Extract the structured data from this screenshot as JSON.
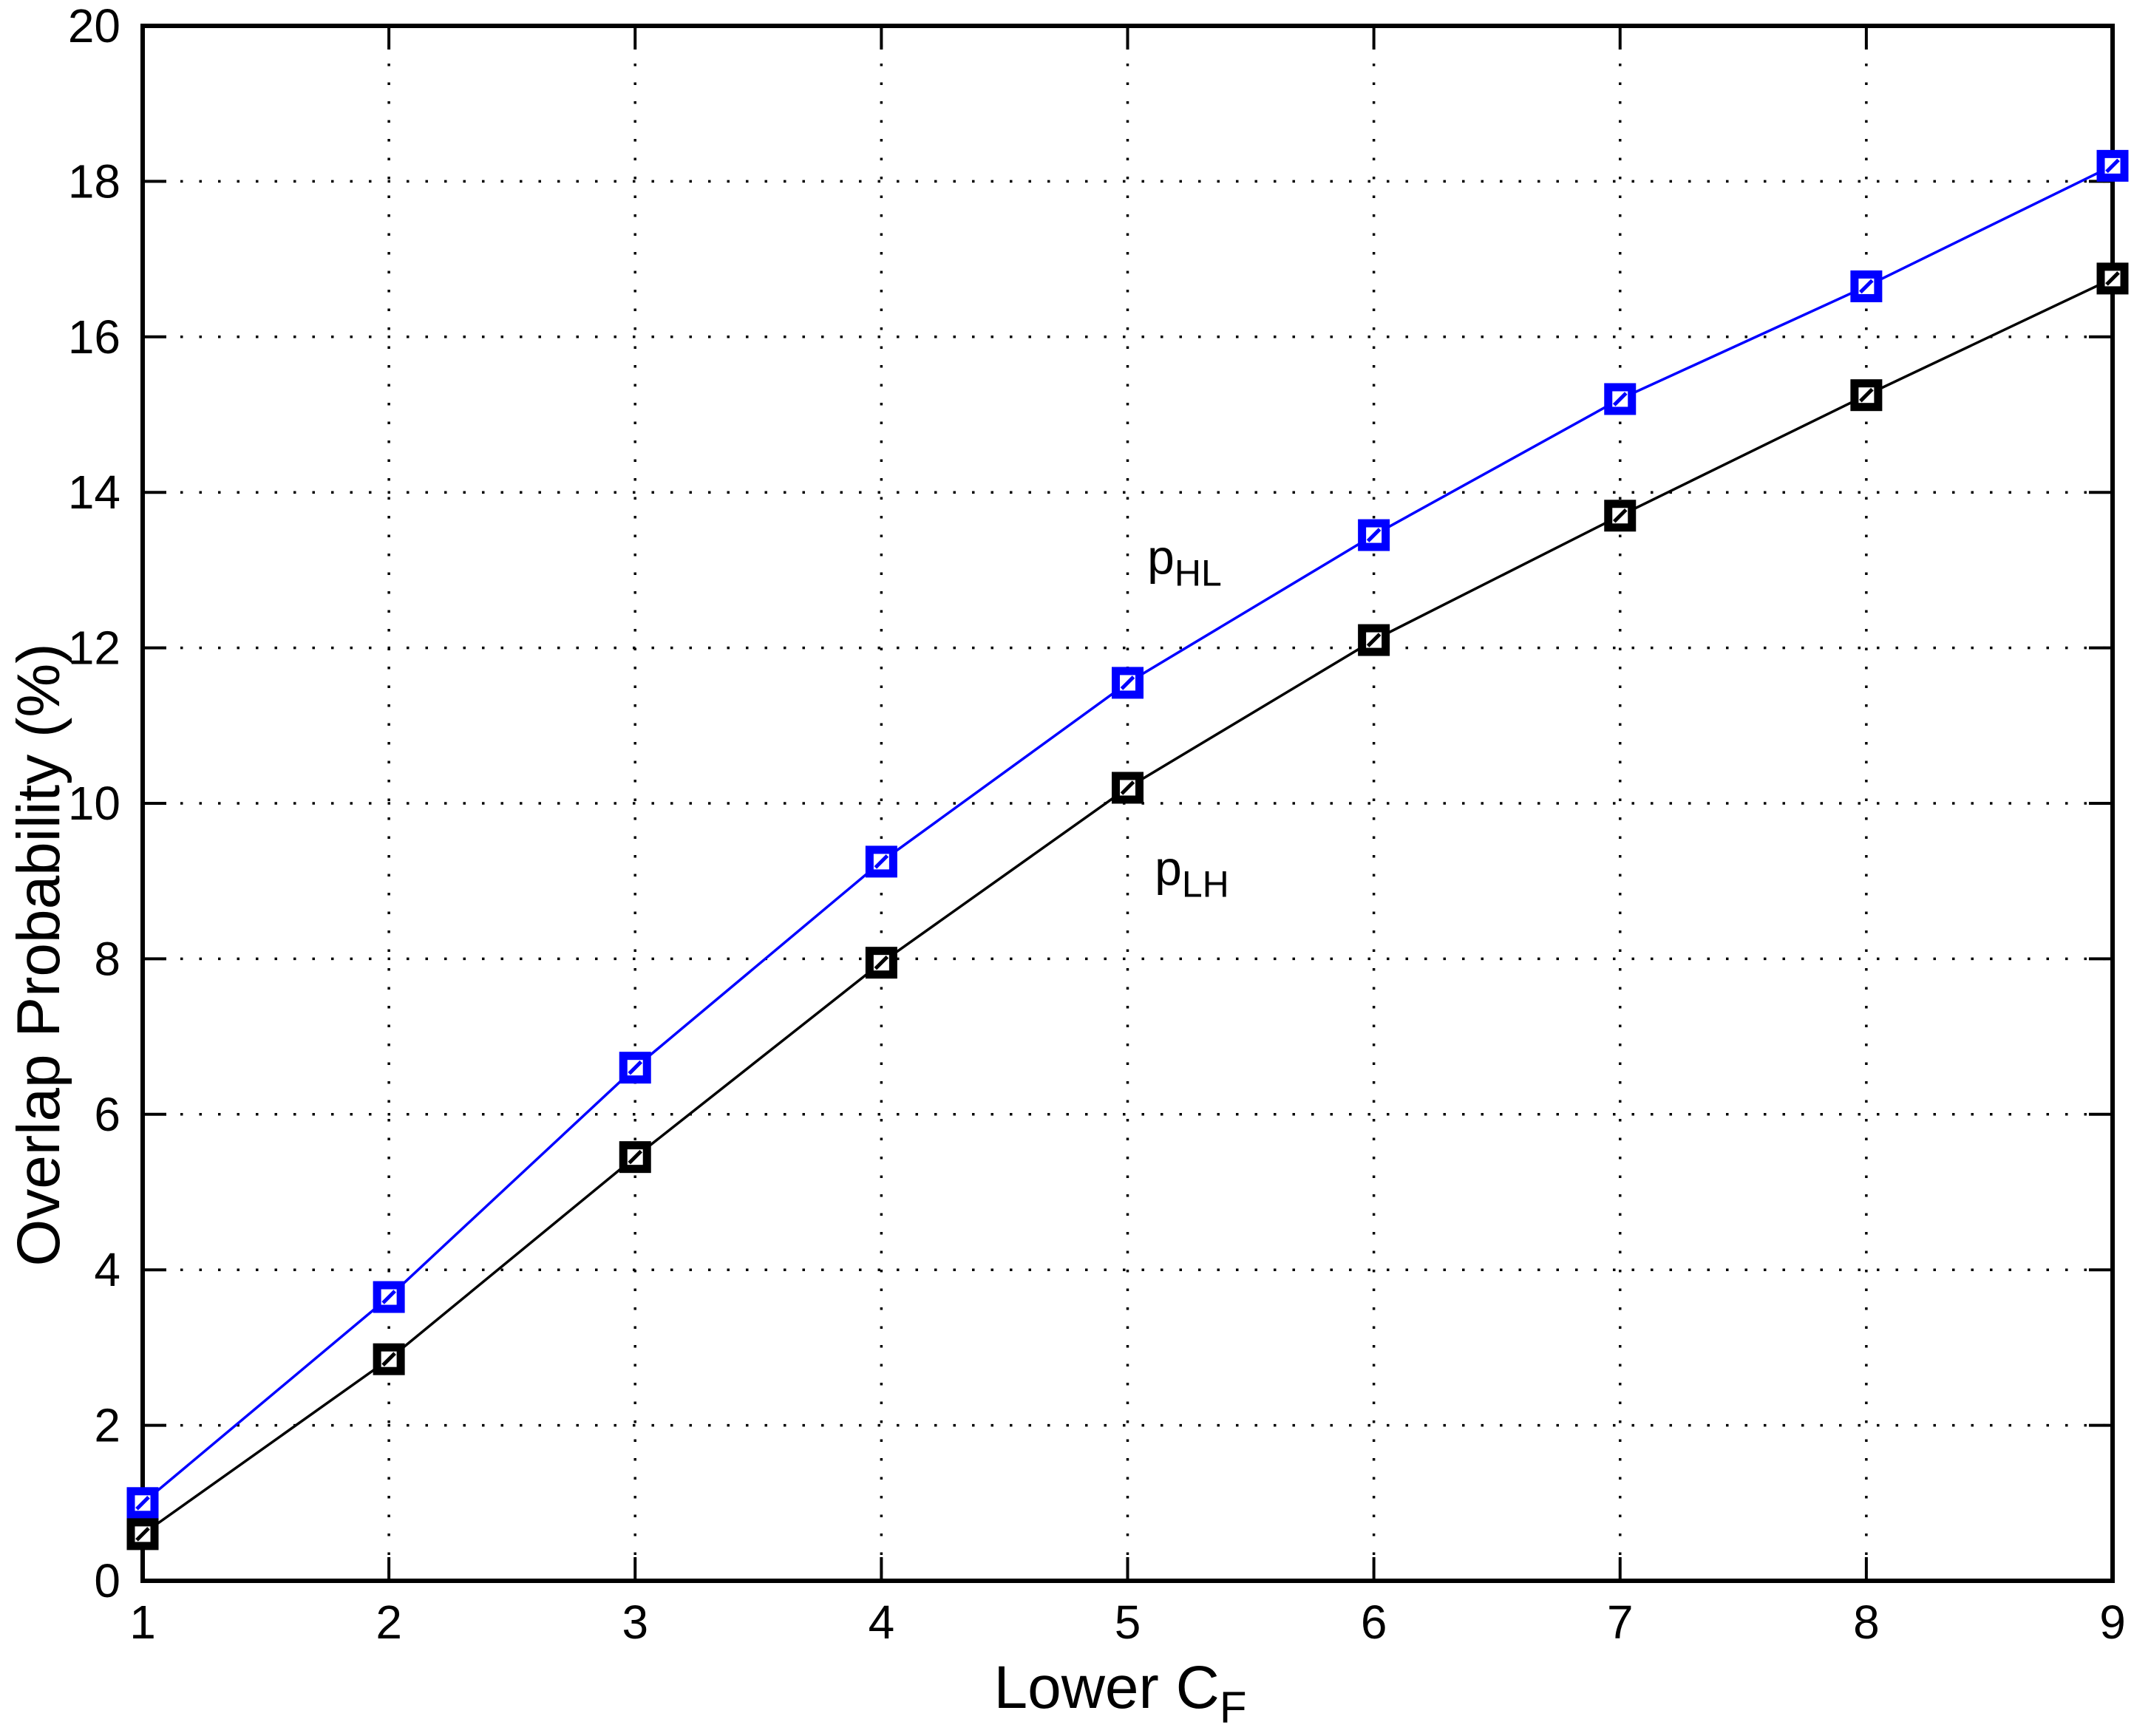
{
  "figure": {
    "background": "#ffffff",
    "frame_color": "#000000",
    "grid_style": "dotted",
    "grid_color": "#000000"
  },
  "chart_data": {
    "type": "line",
    "title": "",
    "xlabel": {
      "main": "Lower C",
      "sub": "F"
    },
    "ylabel": "Overlap Probability (%)",
    "xlim": [
      1,
      9
    ],
    "ylim": [
      0,
      20
    ],
    "xticks": [
      1,
      2,
      3,
      4,
      5,
      6,
      7,
      8,
      9
    ],
    "yticks": [
      0,
      2,
      4,
      6,
      8,
      10,
      12,
      14,
      16,
      18,
      20
    ],
    "grid": true,
    "legend_position": "inline-annotations",
    "x": [
      1,
      2,
      3,
      4,
      5,
      6,
      7,
      8,
      9
    ],
    "series": [
      {
        "name": "p_HL",
        "annotation": {
          "main": "p",
          "sub": "HL",
          "x": 5.08,
          "y": 12.95
        },
        "color": "#0000ff",
        "marker": "square",
        "values": [
          1.0,
          3.65,
          6.6,
          9.25,
          11.55,
          13.45,
          15.2,
          16.65,
          18.2
        ]
      },
      {
        "name": "p_LH",
        "annotation": {
          "main": "p",
          "sub": "LH",
          "x": 5.11,
          "y": 8.95
        },
        "color": "#000000",
        "marker": "square",
        "values": [
          0.6,
          2.85,
          5.45,
          7.95,
          10.2,
          12.1,
          13.7,
          15.25,
          16.75
        ]
      }
    ]
  }
}
